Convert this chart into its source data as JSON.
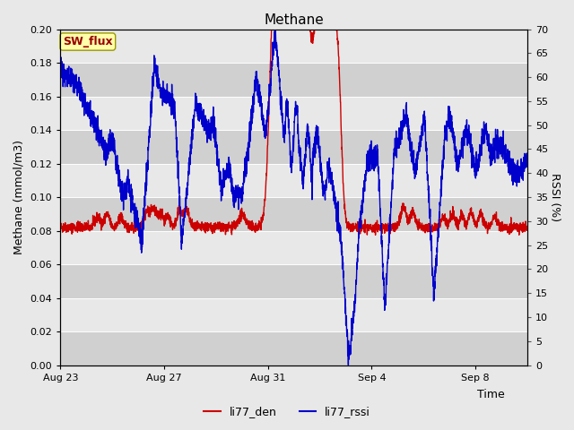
{
  "title": "Methane",
  "xlabel": "Time",
  "ylabel_left": "Methane (mmol/m3)",
  "ylabel_right": "RSSI (%)",
  "ylim_left": [
    0.0,
    0.2
  ],
  "ylim_right": [
    0,
    70
  ],
  "yticks_left": [
    0.0,
    0.02,
    0.04,
    0.06,
    0.08,
    0.1,
    0.12,
    0.14,
    0.16,
    0.18,
    0.2
  ],
  "yticks_right": [
    0,
    5,
    10,
    15,
    20,
    25,
    30,
    35,
    40,
    45,
    50,
    55,
    60,
    65,
    70
  ],
  "xtick_labels": [
    "Aug 23",
    "Aug 27",
    "Aug 31",
    "Sep 4",
    "Sep 8"
  ],
  "legend_labels": [
    "li77_den",
    "li77_rssi"
  ],
  "line_color_red": "#cc0000",
  "line_color_blue": "#0000cc",
  "fig_bg_color": "#e8e8e8",
  "plot_bg_light": "#e8e8e8",
  "plot_bg_dark": "#d0d0d0",
  "sw_flux_box_color": "#ffffaa",
  "sw_flux_text_color": "#990000",
  "grid_color": "#ffffff",
  "title_fontsize": 11,
  "axis_label_fontsize": 9,
  "tick_fontsize": 8,
  "legend_fontsize": 9,
  "linewidth": 1.0
}
